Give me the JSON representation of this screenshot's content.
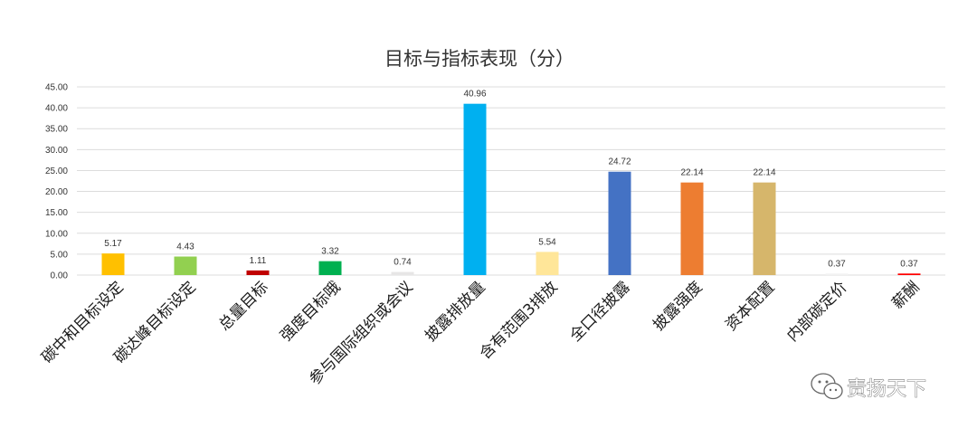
{
  "chart_data": {
    "type": "bar",
    "title": "目标与指标表现（分）",
    "xlabel": "",
    "ylabel": "",
    "ylim": [
      0,
      45
    ],
    "yticks": [
      "0.00",
      "5.00",
      "10.00",
      "15.00",
      "20.00",
      "25.00",
      "30.00",
      "35.00",
      "40.00",
      "45.00"
    ],
    "grid": true,
    "legend": "none",
    "categories": [
      "碳中和目标设定",
      "碳达峰目标设定",
      "总量目标",
      "强度目标哦",
      "参与国际组织或会议",
      "披露排放量",
      "含有范围3排放",
      "全口径披露",
      "披露强度",
      "资本配置",
      "内部碳定价",
      "薪酬"
    ],
    "values": [
      5.17,
      4.43,
      1.11,
      3.32,
      0.74,
      40.96,
      5.54,
      24.72,
      22.14,
      22.14,
      0.37,
      0.37
    ],
    "value_labels": [
      "5.17",
      "4.43",
      "1.11",
      "3.32",
      "0.74",
      "40.96",
      "5.54",
      "24.72",
      "22.14",
      "22.14",
      "0.37",
      "0.37"
    ],
    "colors": [
      "#FFC000",
      "#92D050",
      "#C00000",
      "#00B050",
      "#E7E6E6",
      "#00B0F0",
      "#FFE699",
      "#4472C4",
      "#ED7D31",
      "#D6B66B",
      "#F2F2F2",
      "#FF0000"
    ]
  },
  "watermark": {
    "text": "责扬天下",
    "icon": "wechat-icon"
  }
}
